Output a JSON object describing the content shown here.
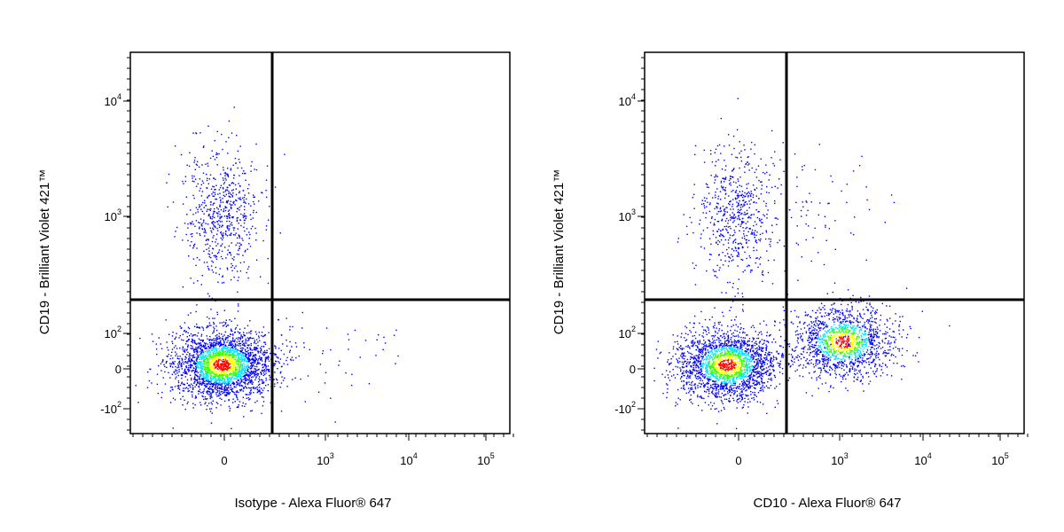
{
  "chart_data": [
    {
      "type": "scatter",
      "panel": "left",
      "xlabel": "Isotype - Alexa Fluor® 647",
      "ylabel": "CD19 - Brilliant Violet 421™",
      "x_scale": "biexponential",
      "y_scale": "biexponential",
      "x_ticks": [
        {
          "base": "0",
          "exp": ""
        },
        {
          "base": "10",
          "exp": "3"
        },
        {
          "base": "10",
          "exp": "4"
        },
        {
          "base": "10",
          "exp": "5"
        }
      ],
      "y_ticks": [
        {
          "base": "10",
          "exp": "4"
        },
        {
          "base": "10",
          "exp": "3"
        },
        {
          "base": "10",
          "exp": "2"
        },
        {
          "base": "0",
          "exp": ""
        },
        {
          "base": "-10",
          "exp": "2"
        }
      ],
      "quadrant_gate": {
        "x": 270,
        "y": 190
      },
      "color_scale": [
        "#0000ff",
        "#00e5ff",
        "#33ff00",
        "#ffff00",
        "#ff0000"
      ],
      "populations": [
        {
          "name": "",
          "center_x": 0,
          "center_y": 10,
          "count": 2600
        },
        {
          "name": "",
          "center_x": 0,
          "center_y": 800,
          "count": 650
        },
        {
          "name": "",
          "center_x": 900,
          "center_y": 0,
          "count": 30
        }
      ]
    },
    {
      "type": "scatter",
      "panel": "right",
      "xlabel": "CD10 - Alexa Fluor® 647",
      "ylabel": "CD19 - Brilliant Violet 421™",
      "x_scale": "biexponential",
      "y_scale": "biexponential",
      "x_ticks": [
        {
          "base": "0",
          "exp": ""
        },
        {
          "base": "10",
          "exp": "3"
        },
        {
          "base": "10",
          "exp": "4"
        },
        {
          "base": "10",
          "exp": "5"
        }
      ],
      "y_ticks": [
        {
          "base": "10",
          "exp": "4"
        },
        {
          "base": "10",
          "exp": "3"
        },
        {
          "base": "10",
          "exp": "2"
        },
        {
          "base": "0",
          "exp": ""
        },
        {
          "base": "-10",
          "exp": "2"
        }
      ],
      "quadrant_gate": {
        "x": 270,
        "y": 190
      },
      "color_scale": [
        "#0000ff",
        "#00e5ff",
        "#33ff00",
        "#ffff00",
        "#ff0000"
      ],
      "populations": [
        {
          "name": "",
          "center_x": -10,
          "center_y": 10,
          "count": 2200
        },
        {
          "name": "",
          "center_x": 1500,
          "center_y": 70,
          "count": 1500
        },
        {
          "name": "",
          "center_x": 0,
          "center_y": 800,
          "count": 600
        },
        {
          "name": "",
          "center_x": 700,
          "center_y": 900,
          "count": 80
        }
      ]
    }
  ]
}
